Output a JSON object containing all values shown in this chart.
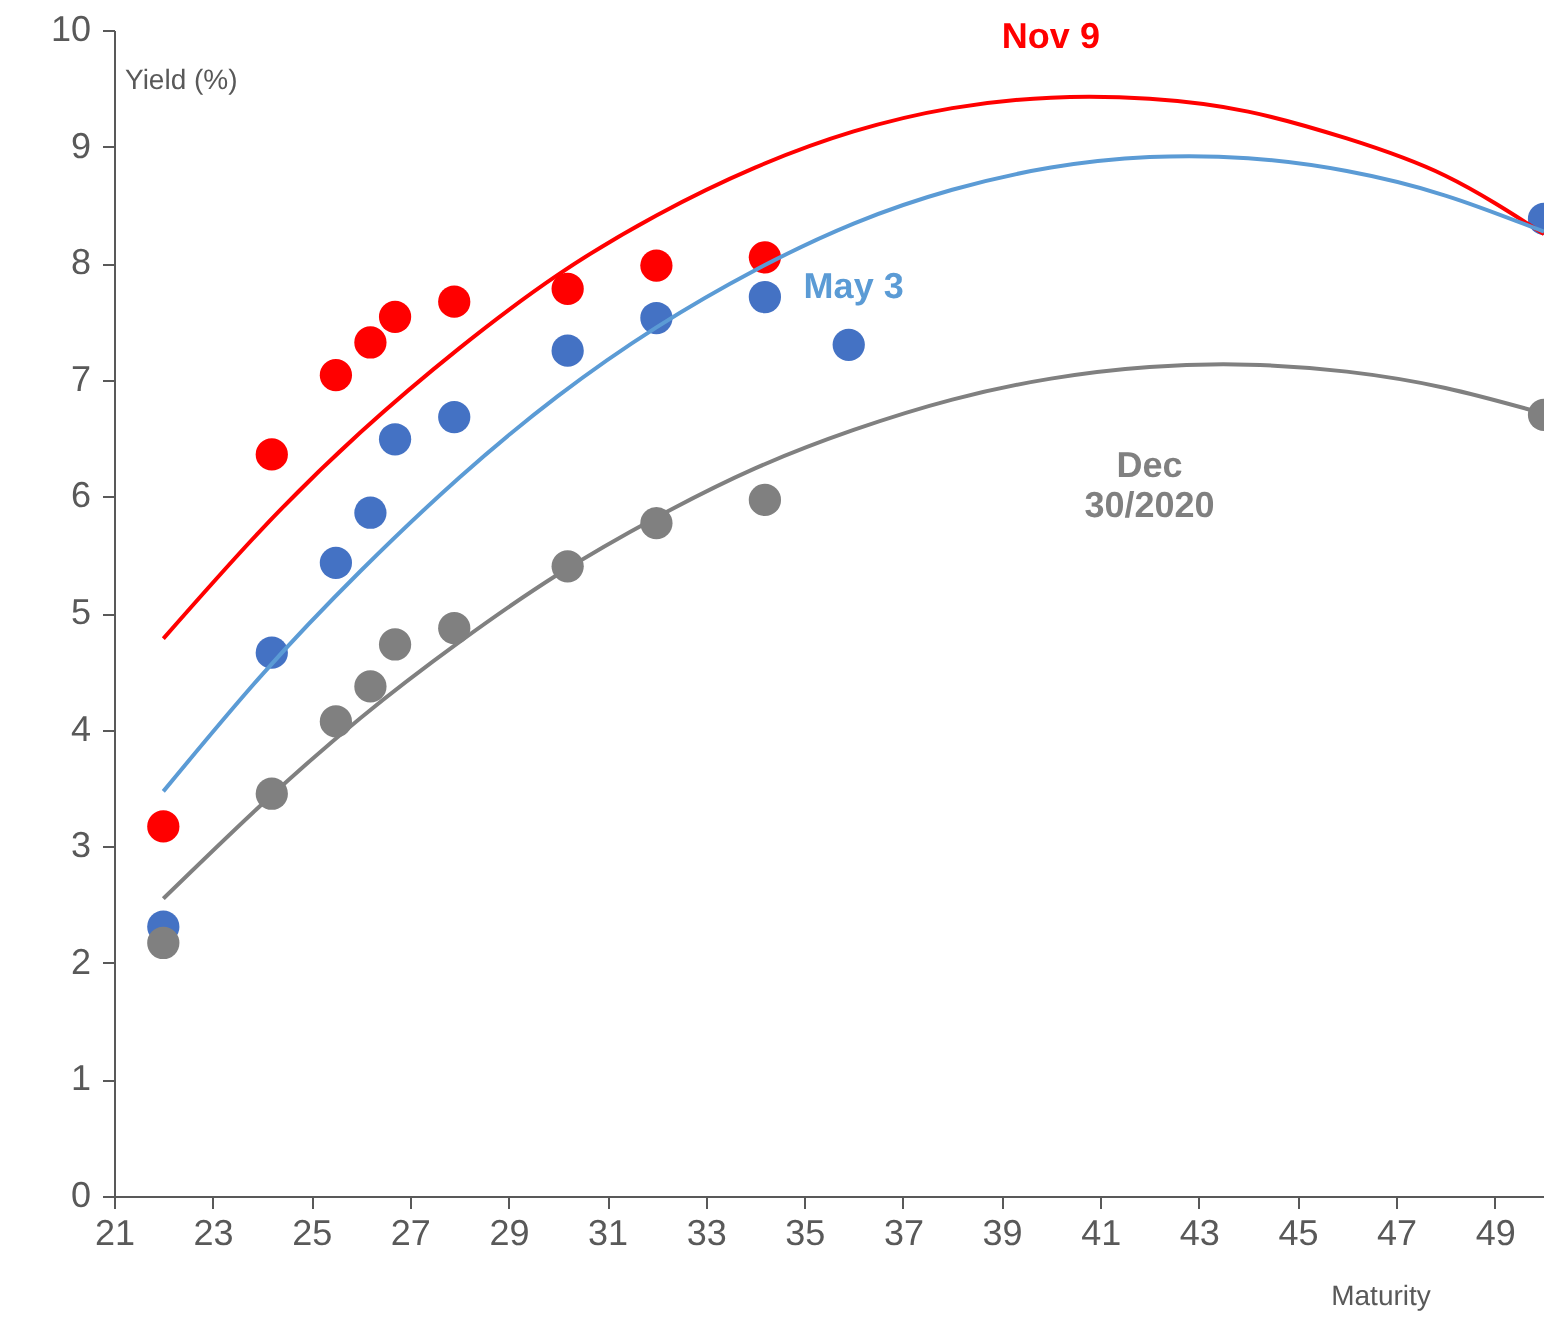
{
  "chart_data": {
    "type": "scatter",
    "ylabel": "Yield (%)",
    "xlabel": "Maturity",
    "xlim": [
      21,
      50
    ],
    "xticks": [
      21,
      23,
      25,
      27,
      29,
      31,
      33,
      35,
      37,
      39,
      41,
      43,
      45,
      47,
      49
    ],
    "ylim": [
      0,
      10
    ],
    "yticks": [
      0,
      1,
      2,
      3,
      4,
      5,
      6,
      7,
      8,
      9,
      10
    ],
    "grid": false,
    "marker": "circle",
    "series": [
      {
        "color": "#ff0000",
        "x": [
          22,
          24.2,
          25.5,
          26.2,
          26.7,
          27.9,
          30.2,
          32.0,
          34.2
        ],
        "values": [
          3.17,
          6.36,
          7.04,
          7.32,
          7.54,
          7.67,
          7.78,
          7.98,
          8.05
        ]
      },
      {
        "color": "#4472c4",
        "x": [
          22,
          24.2,
          25.5,
          26.2,
          26.7,
          27.9,
          30.2,
          32.0,
          34.2,
          35.9,
          50
        ],
        "values": [
          2.31,
          4.66,
          5.43,
          5.86,
          6.49,
          6.68,
          7.25,
          7.53,
          7.71,
          7.3,
          8.38
        ]
      },
      {
        "color": "#808080",
        "x": [
          22,
          24.2,
          25.5,
          26.2,
          26.7,
          27.9,
          30.2,
          32.0,
          34.2,
          50
        ],
        "values": [
          2.17,
          3.45,
          4.07,
          4.37,
          4.73,
          4.87,
          5.4,
          5.77,
          5.97,
          6.7
        ]
      },
      {
        "type": "line",
        "name": "Nov 9",
        "color": "#ff0000",
        "line_style": "solid",
        "marker": "none",
        "x": [
          22,
          24,
          26,
          28,
          30,
          32,
          34,
          36,
          38,
          40,
          42,
          44,
          46,
          48,
          50
        ],
        "values": [
          4.78,
          5.72,
          6.55,
          7.27,
          7.9,
          8.41,
          8.82,
          9.13,
          9.33,
          9.42,
          9.41,
          9.3,
          9.07,
          8.75,
          8.25
        ]
      },
      {
        "type": "line",
        "name": "May 3",
        "color": "#5b9bd5",
        "line_style": "solid",
        "marker": "none",
        "x": [
          22,
          24,
          26,
          28,
          30,
          32,
          34,
          36,
          38,
          40,
          42,
          44,
          46,
          48,
          50
        ],
        "values": [
          3.47,
          4.47,
          5.36,
          6.16,
          6.86,
          7.45,
          7.94,
          8.34,
          8.63,
          8.82,
          8.91,
          8.9,
          8.79,
          8.58,
          8.27
        ]
      },
      {
        "type": "line",
        "name": "Dec\n30/2020",
        "color": "#808080",
        "line_style": "solid",
        "marker": "none",
        "x": [
          22,
          24,
          26,
          28,
          30,
          32,
          34,
          36,
          38,
          40,
          42,
          44,
          46,
          48,
          50
        ],
        "values": [
          2.55,
          3.36,
          4.1,
          4.75,
          5.33,
          5.82,
          6.24,
          6.57,
          6.83,
          7.01,
          7.11,
          7.13,
          7.07,
          6.93,
          6.71
        ]
      }
    ]
  }
}
